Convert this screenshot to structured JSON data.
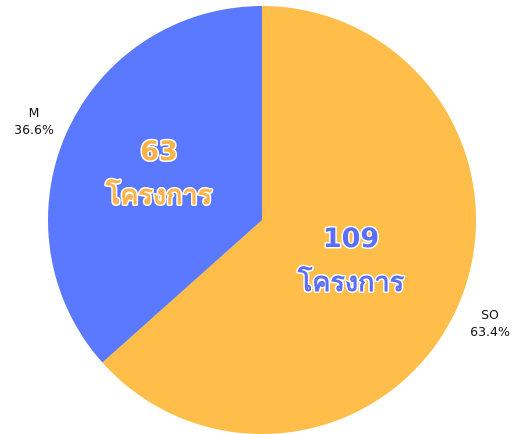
{
  "chart_data": {
    "type": "pie",
    "title": "",
    "slices": [
      {
        "label": "SO",
        "value": 63.4,
        "percent_label": "63.4%",
        "inside_count": "109",
        "inside_text": "โครงการ",
        "color": "#FFBD4A",
        "text_fill": "#5B6EF5",
        "text_stroke": "#FFFFFF"
      },
      {
        "label": "M",
        "value": 36.6,
        "percent_label": "36.6%",
        "inside_count": "63",
        "inside_text": "โครงการ",
        "color": "#5B79FF",
        "text_fill": "#FFB347",
        "text_stroke": "#FFFFFF"
      }
    ],
    "legend": "none",
    "start_angle_deg": 0,
    "direction": "clockwise"
  }
}
